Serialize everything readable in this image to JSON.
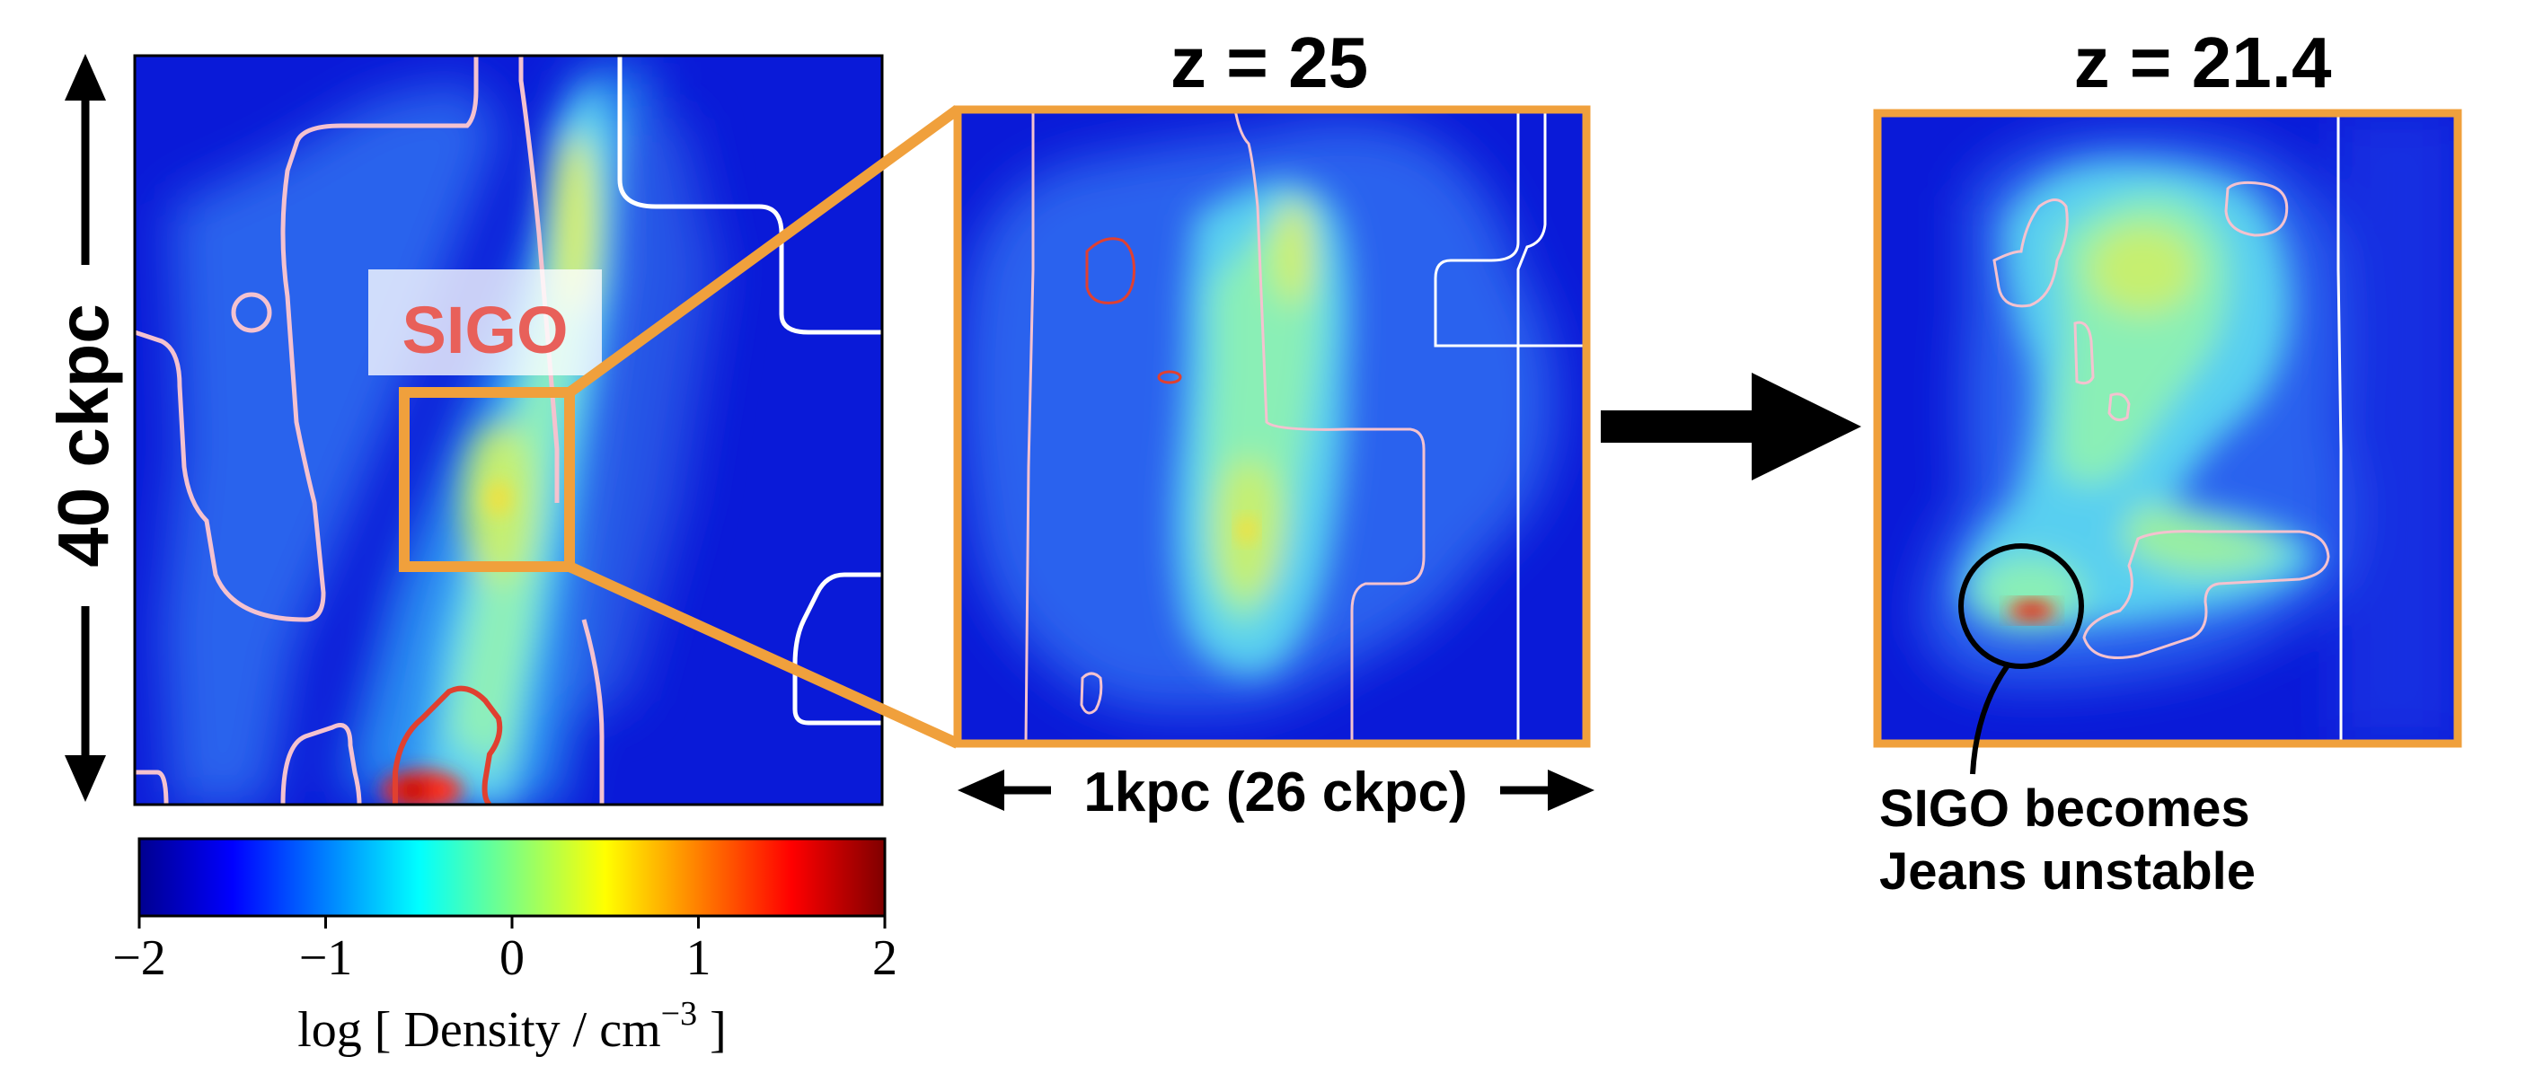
{
  "panels": {
    "left": {
      "name": "density map overview"
    },
    "middle": {
      "title": "z = 25"
    },
    "right": {
      "title": "z = 21.4"
    }
  },
  "labels": {
    "vertical_scale": "40 ckpc",
    "horizontal_scale": "1kpc (26 ckpc)",
    "object": "SIGO",
    "annotation_line1": "SIGO becomes",
    "annotation_line2": "Jeans unstable"
  },
  "colorbar": {
    "min": -2,
    "max": 2,
    "ticks": [
      "−2",
      "−1",
      "0",
      "1",
      "2"
    ],
    "tick_values": [
      -2,
      -1,
      0,
      1,
      2
    ],
    "label_main": "log [ Density / cm",
    "label_sup": "−3",
    "label_end": " ]",
    "colormap": "jet"
  },
  "colors": {
    "zoom_frame": "#f0a03c",
    "sigo_text": "#e8605a",
    "contour_pink": "#f4c2cf",
    "contour_white": "#ffffff",
    "contour_red": "#e04030",
    "background_density": "#0a1ad8"
  }
}
